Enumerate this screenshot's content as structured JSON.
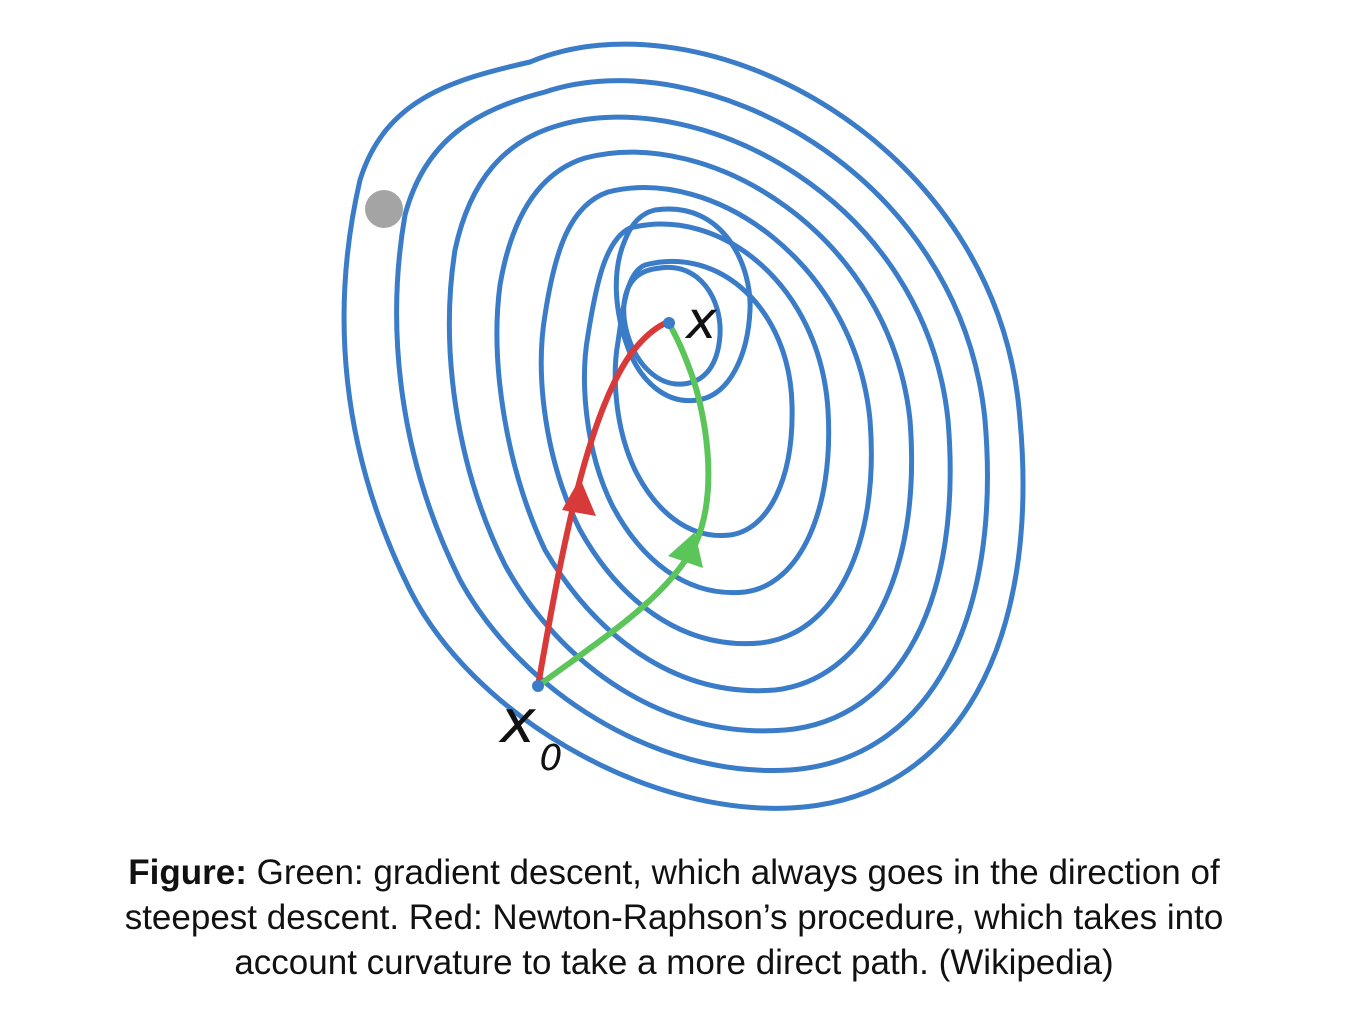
{
  "labels": {
    "optimum": "x",
    "start_base": "x",
    "start_subscript": "0"
  },
  "caption": {
    "lead": "Figure:",
    "body": " Green: gradient descent, which always goes in the direction of steepest descent. Red: Newton-Raphson’s procedure, which takes into account curvature to take a more direct path. (Wikipedia)"
  },
  "colors": {
    "contour": "#3a7cc8",
    "newton_path": "#d83a3a",
    "gradient_path": "#5cc55a",
    "point": "#3a7cc8",
    "cursor": "#9a9a9a"
  }
}
